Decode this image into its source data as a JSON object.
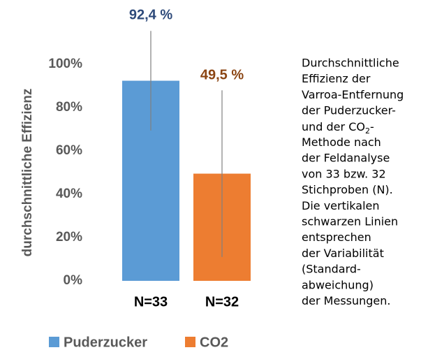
{
  "chart_data": {
    "type": "bar",
    "y_label": "durchschnittliche Effizienz",
    "categories": [
      "N=33",
      "N=32"
    ],
    "series": [
      {
        "name": "Puderzucker",
        "color": "#5b9bd5",
        "label_color": "#2e4a7a",
        "values": [
          92.4,
          null
        ],
        "errors": [
          23,
          null
        ],
        "value_labels": [
          "92,4 %",
          null
        ]
      },
      {
        "name": "CO2",
        "color": "#ed7d31",
        "label_color": "#8b4513",
        "values": [
          null,
          49.5
        ],
        "errors": [
          null,
          38.5
        ],
        "value_labels": [
          null,
          "49,5 %"
        ]
      }
    ],
    "ylim": [
      0,
      100
    ],
    "yticks": [
      {
        "value": 0,
        "label": "0%"
      },
      {
        "value": 20,
        "label": "20%"
      },
      {
        "value": 40,
        "label": "40%"
      },
      {
        "value": 60,
        "label": "60%"
      },
      {
        "value": 80,
        "label": "80%"
      },
      {
        "value": 100,
        "label": "100%"
      }
    ],
    "error_color": "#808080",
    "caption": [
      "Durchschnittliche",
      "Effizienz der",
      "Varroa-Entfernung",
      "der Puderzucker-",
      {
        "text": "und der CO",
        "sub": "2",
        "after": "-"
      },
      "Methode nach",
      "der Feldanalyse",
      "von 33 bzw. 32",
      "Stichproben (N).",
      "Die vertikalen",
      "schwarzen Linien",
      "entsprechen",
      "der Variabilität",
      "(Standard-",
      "abweichung)",
      "der Messungen."
    ]
  }
}
